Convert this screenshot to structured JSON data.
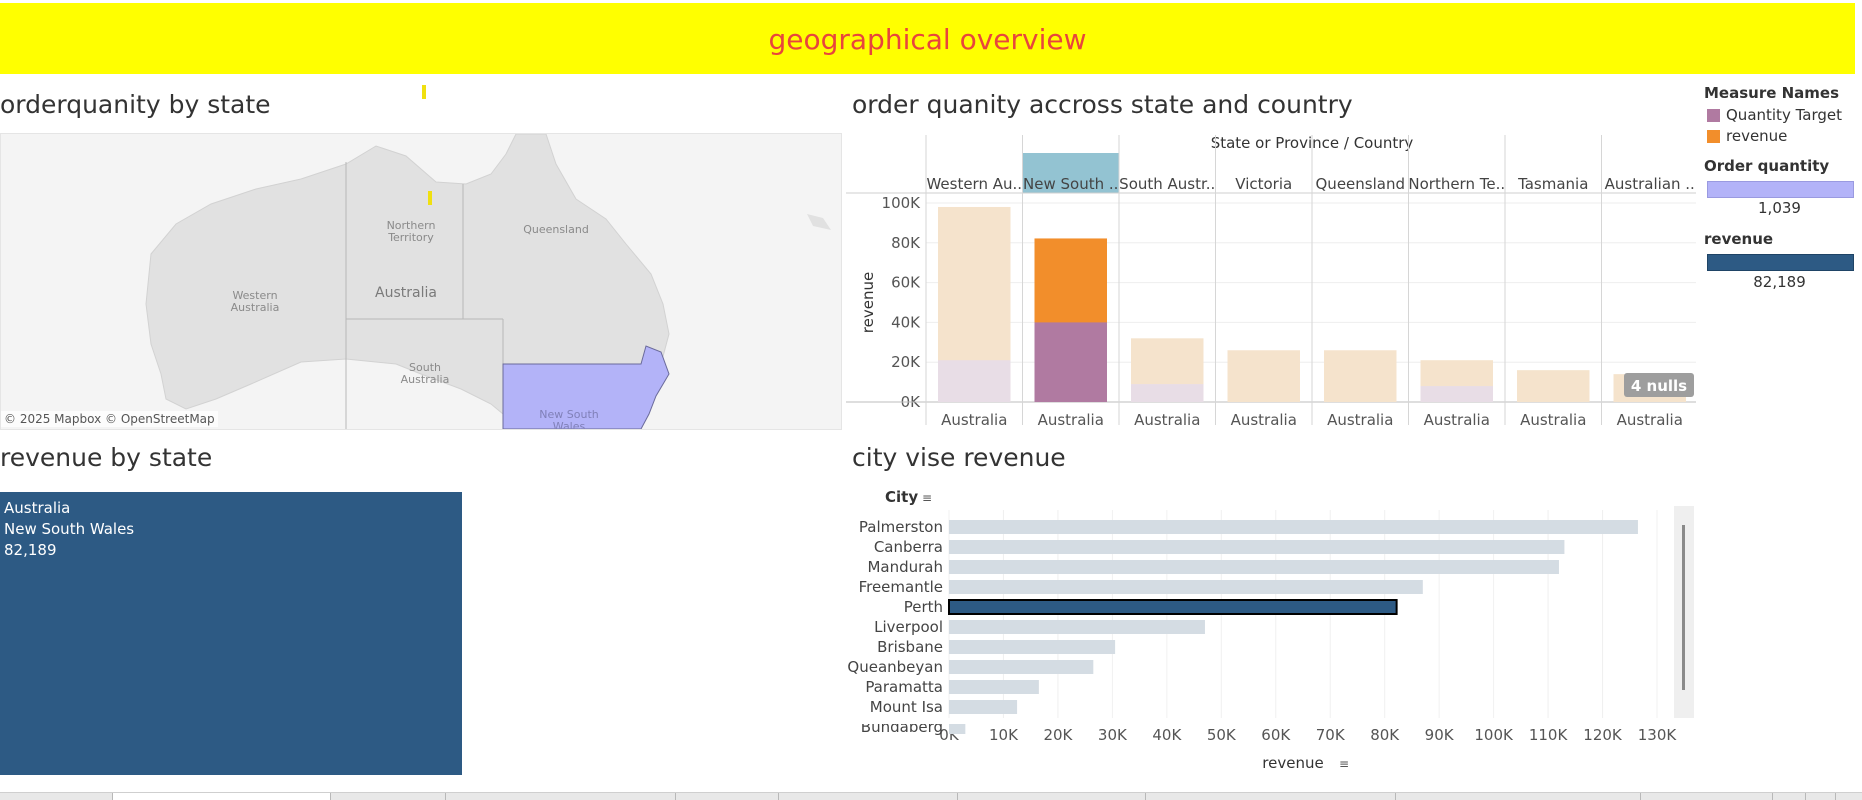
{
  "banner": {
    "title": "geographical overview"
  },
  "map_sheet": {
    "title": "orderquanity by state",
    "labels": {
      "northern_territory": "Northern\nTerritory",
      "queensland": "Queensland",
      "western_australia": "Western\nAustralia",
      "country": "Australia",
      "south_australia": "South\nAustralia",
      "new_south_wales": "New South\nWales"
    },
    "attribution": "© 2025 Mapbox © OpenStreetMap"
  },
  "state_bar_sheet": {
    "title": "order quanity accross state and country",
    "header_title": "State or Province  /  Country"
  },
  "legend": {
    "measure_names_title": "Measure Names",
    "items": [
      {
        "label": "Quantity Target",
        "color": "#b07aa1"
      },
      {
        "label": "revenue",
        "color": "#f28e2b"
      }
    ],
    "order_quantity": {
      "title": "Order quantity",
      "value": "1,039",
      "color": "#b3b3f8"
    },
    "revenue": {
      "title": "revenue",
      "value": "82,189",
      "color": "#2d5a84"
    }
  },
  "treemap_sheet": {
    "title": "revenue by state",
    "lines": [
      "Australia",
      "New South Wales",
      "82,189"
    ],
    "color": "#2d5a84"
  },
  "city_sheet": {
    "title": "city vise revenue"
  },
  "chart_data": [
    {
      "type": "bar",
      "title": "order quanity accross state and country",
      "header_title": "State or Province  /  Country",
      "categories": [
        "Western Au..",
        "New South ..",
        "South Austr..",
        "Victoria",
        "Queensland",
        "Northern Te..",
        "Tasmania",
        "Australian .."
      ],
      "country_labels": [
        "Australia",
        "Australia",
        "Australia",
        "Australia",
        "Australia",
        "Australia",
        "Australia",
        "Australia"
      ],
      "highlighted": "New South ..",
      "ylabel": "revenue",
      "ylim": [
        0,
        100000
      ],
      "ytick_labels": [
        "0K",
        "20K",
        "40K",
        "60K",
        "80K",
        "100K"
      ],
      "series": [
        {
          "name": "Quantity Target",
          "values": [
            21000,
            40000,
            9000,
            0,
            0,
            8000,
            0,
            0
          ]
        },
        {
          "name": "revenue",
          "values": [
            98000,
            82189,
            32000,
            26000,
            26000,
            21000,
            16000,
            14000
          ]
        }
      ],
      "annotation": "4 nulls",
      "colors": {
        "target": "#b07aa1",
        "revenue": "#f28e2b",
        "target_faded": "#e8dde6",
        "revenue_faded": "#f5e3cc",
        "header_highlight": "#93c3d2"
      }
    },
    {
      "type": "bar",
      "title": "city vise revenue",
      "orientation": "horizontal",
      "ylabel": "City",
      "xlabel": "revenue",
      "categories": [
        "Palmerston",
        "Canberra",
        "Mandurah",
        "Freemantle",
        "Perth",
        "Liverpool",
        "Brisbane",
        "Queanbeyan",
        "Paramatta",
        "Mount Isa",
        "Bundaberg"
      ],
      "values": [
        126500,
        113000,
        112000,
        87000,
        82189,
        47000,
        30500,
        26500,
        16500,
        12500,
        3000
      ],
      "highlighted": "Perth",
      "xlim": [
        0,
        130000
      ],
      "xtick_labels": [
        "0K",
        "10K",
        "20K",
        "30K",
        "40K",
        "50K",
        "60K",
        "70K",
        "80K",
        "90K",
        "100K",
        "110K",
        "120K",
        "130K"
      ],
      "colors": {
        "bar": "#d4dce3",
        "highlight": "#2d5a84"
      }
    }
  ]
}
